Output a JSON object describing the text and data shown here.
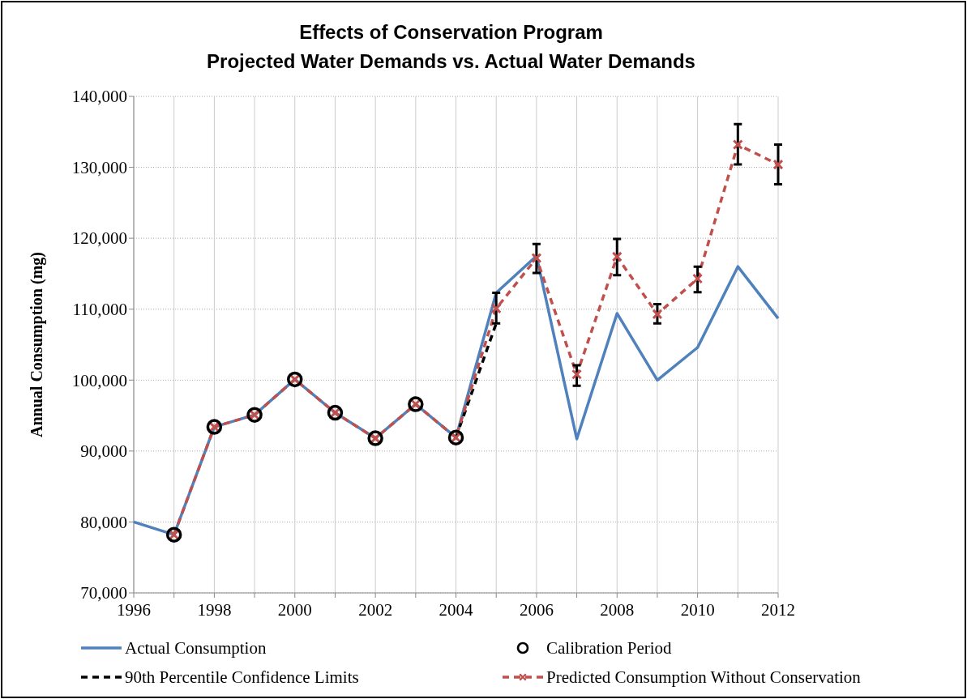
{
  "chart_data": {
    "type": "line",
    "title": "Effects of Conservation Program",
    "subtitle": "Projected Water Demands vs. Actual Water Demands",
    "ylabel": "Annual Consumption (mg)",
    "xlim": [
      1996,
      2012
    ],
    "xticks": [
      1996,
      {
        "value": 1997,
        "label": null
      },
      1998,
      {
        "value": 1999,
        "label": null
      },
      2000,
      {
        "value": 2001,
        "label": null
      },
      2002,
      {
        "value": 2003,
        "label": null
      },
      2004,
      {
        "value": 2005,
        "label": null
      },
      2006,
      {
        "value": 2007,
        "label": null
      },
      2008,
      {
        "value": 2009,
        "label": null
      },
      2010,
      {
        "value": 2011,
        "label": null
      },
      2012
    ],
    "ylim": [
      70000,
      140000
    ],
    "yticks": [
      {
        "value": 70000,
        "label": "70,000"
      },
      {
        "value": 80000,
        "label": "80,000"
      },
      {
        "value": 90000,
        "label": "90,000"
      },
      {
        "value": 100000,
        "label": "100,000"
      },
      {
        "value": 110000,
        "label": "110,000"
      },
      {
        "value": 120000,
        "label": "120,000"
      },
      {
        "value": 130000,
        "label": "130,000"
      },
      {
        "value": 140000,
        "label": "140,000"
      }
    ],
    "grid": true,
    "legend": "bottom",
    "series": [
      {
        "name": "Actual Consumption",
        "color": "#4f81bd",
        "marker": "none",
        "line_style": "solid",
        "x": [
          1996,
          1997,
          1998,
          1999,
          2000,
          2001,
          2002,
          2003,
          2004,
          2005,
          2006,
          2007,
          2008,
          2009,
          2010,
          2011,
          2012
        ],
        "values": [
          80000,
          78200,
          93400,
          95100,
          100100,
          95400,
          91800,
          96600,
          91900,
          112300,
          117500,
          91700,
          109400,
          100000,
          104600,
          116000,
          108700
        ]
      },
      {
        "name": "Calibration Period",
        "type": "scatter",
        "color": "#000000",
        "marker": "circle",
        "x": [
          1997,
          1998,
          1999,
          2000,
          2001,
          2002,
          2003,
          2004
        ],
        "values": [
          78200,
          93400,
          95100,
          100100,
          95400,
          91800,
          96600,
          91900
        ]
      },
      {
        "name": "90th Percentile Confidence Limits",
        "color": "#000000",
        "marker": "none",
        "line_style": "dashed",
        "x": [
          2004,
          2005
        ],
        "values": [
          91900,
          108000
        ]
      },
      {
        "name": "Predicted Consumption Without Conservation",
        "color": "#c0504d",
        "marker": "cross",
        "line_style": "dashed",
        "x": [
          1997,
          1998,
          1999,
          2000,
          2001,
          2002,
          2003,
          2004,
          2005,
          2006,
          2007,
          2008,
          2009,
          2010,
          2011,
          2012
        ],
        "values": [
          78200,
          93400,
          95100,
          100100,
          95400,
          91800,
          96600,
          91900,
          110100,
          117200,
          100800,
          117400,
          109300,
          114300,
          133200,
          130400
        ],
        "errors": [
          null,
          null,
          null,
          null,
          null,
          null,
          null,
          null,
          [
            108000,
            112300
          ],
          [
            115100,
            119200
          ],
          [
            99200,
            102100
          ],
          [
            114800,
            119900
          ],
          [
            108000,
            110700
          ],
          [
            112400,
            116000
          ],
          [
            130400,
            136100
          ],
          [
            127600,
            133200
          ]
        ]
      }
    ]
  }
}
